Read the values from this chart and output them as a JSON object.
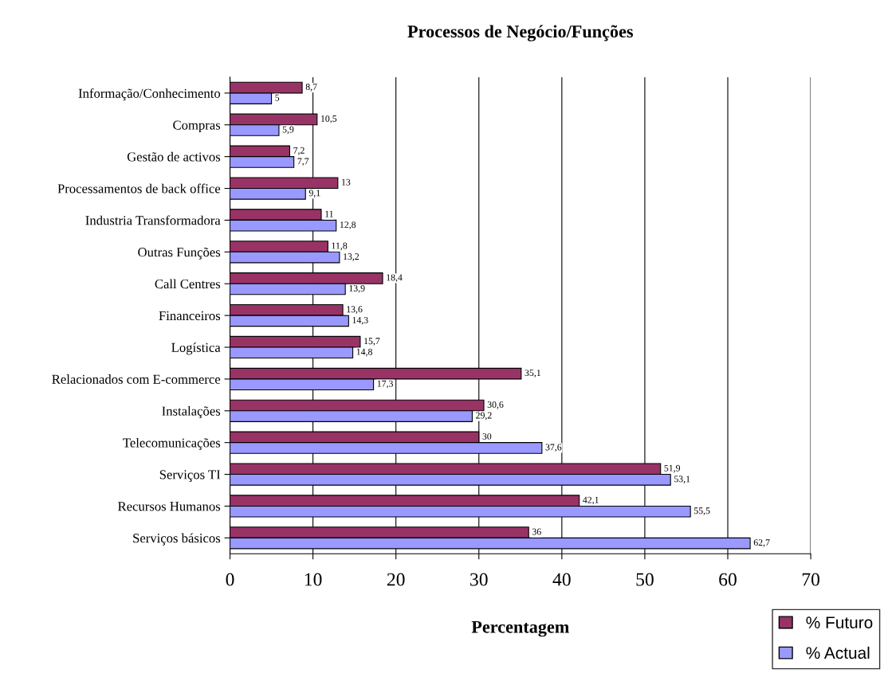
{
  "chart_data": {
    "type": "bar",
    "orientation": "horizontal",
    "title": "Processos de Negócio/Funções",
    "xlabel": "Percentagem",
    "categories": [
      "Informação/Conhecimento",
      "Compras",
      "Gestão de activos",
      "Processamentos de back office",
      "Industria Transformadora",
      "Outras Funções",
      "Call Centres",
      "Financeiros",
      "Logística",
      "Relacionados com E-commerce",
      "Instalações",
      "Telecomunicações",
      "Serviços TI",
      "Recursos Humanos",
      "Serviços básicos"
    ],
    "series": [
      {
        "name": "% Futuro",
        "color": "#993366",
        "values": [
          8.7,
          10.5,
          7.2,
          13,
          11,
          11.8,
          18.4,
          13.6,
          15.7,
          35.1,
          30.6,
          30,
          51.9,
          42.1,
          36
        ],
        "value_labels": [
          "8,7",
          "10,5",
          "7,2",
          "13",
          "11",
          "11,8",
          "18,4",
          "13,6",
          "15,7",
          "35,1",
          "30,6",
          "30",
          "51,9",
          "42,1",
          "36"
        ]
      },
      {
        "name": "% Actual",
        "color": "#9999ff",
        "values": [
          5,
          5.9,
          7.7,
          9.1,
          12.8,
          13.2,
          13.9,
          14.3,
          14.8,
          17.3,
          29.2,
          37.6,
          53.1,
          55.5,
          62.7
        ],
        "value_labels": [
          "5",
          "5,9",
          "7,7",
          "9,1",
          "12,8",
          "13,2",
          "13,9",
          "14,3",
          "14,8",
          "17,3",
          "29,2",
          "37,6",
          "53,1",
          "55,5",
          "62,7"
        ]
      }
    ],
    "xlim": [
      0,
      70
    ],
    "xticks": [
      0,
      10,
      20,
      30,
      40,
      50,
      60,
      70
    ],
    "grid": "x",
    "legend": "bottom right"
  }
}
